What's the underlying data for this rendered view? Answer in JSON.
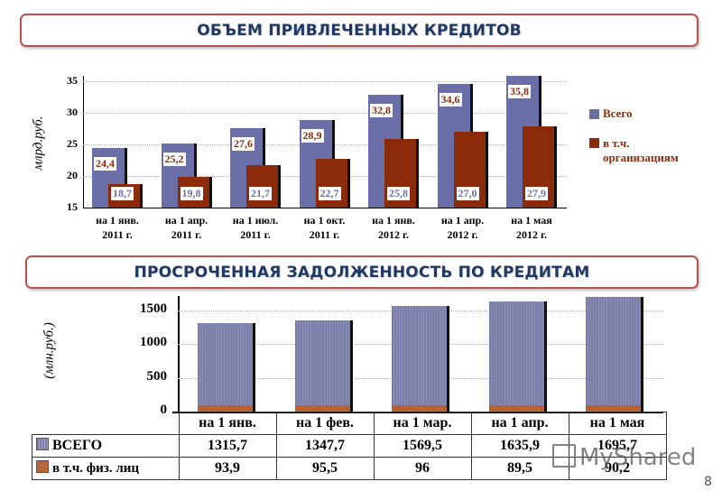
{
  "slide": {
    "page_number": "8",
    "watermark": "MyShared"
  },
  "section1": {
    "title": "ОБЪЕМ ПРИВЛЕЧЕННЫХ КРЕДИТОВ"
  },
  "section2": {
    "title": "ПРОСРОЧЕННАЯ ЗАДОЛЖЕННОСТЬ ПО КРЕДИТАМ"
  },
  "colors": {
    "total": "#6b6fa8",
    "org": "#8b2b0a",
    "banner_border": "#c0504d",
    "banner_text": "#1f3864"
  },
  "chart_data": [
    {
      "type": "bar",
      "title": "ОБЪЕМ ПРИВЛЕЧЕННЫХ КРЕДИТОВ",
      "ylabel": "млрд.руб.",
      "xlabel": "",
      "ylim": [
        15,
        35
      ],
      "yticks": [
        "35",
        "30",
        "25",
        "20",
        "15"
      ],
      "grid": true,
      "legend_position": "right",
      "categories": [
        "на 1 янв. 2011 г.",
        "на 1 апр. 2011 г.",
        "на 1 июл. 2011 г.",
        "на 1 окт. 2011 г.",
        "на 1 янв. 2012 г.",
        "на 1 апр. 2012 г.",
        "на 1 мая 2012 г."
      ],
      "category_lines": [
        [
          "на 1 янв.",
          "2011 г."
        ],
        [
          "на 1 апр.",
          "2011 г."
        ],
        [
          "на 1 июл.",
          "2011 г."
        ],
        [
          "на 1 окт.",
          "2011 г."
        ],
        [
          "на 1 янв.",
          "2012 г."
        ],
        [
          "на 1 апр.",
          "2012 г."
        ],
        [
          "на 1 мая",
          "2012 г."
        ]
      ],
      "series": [
        {
          "name": "Всего",
          "values": [
            24.4,
            25.2,
            27.6,
            28.9,
            32.8,
            34.6,
            35.8
          ],
          "labels": [
            "24,4",
            "25,2",
            "27,6",
            "28,9",
            "32,8",
            "34,6",
            "35,8"
          ]
        },
        {
          "name": "в т.ч. организациям",
          "values": [
            18.7,
            19.8,
            21.7,
            22.7,
            25.8,
            27.0,
            27.9
          ],
          "labels": [
            "18,7",
            "19,8",
            "21,7",
            "22,7",
            "25,8",
            "27,0",
            "27,9"
          ]
        }
      ],
      "legend": [
        "Всего",
        "в т.ч.",
        "организациям"
      ]
    },
    {
      "type": "bar",
      "title": "ПРОСРОЧЕННАЯ ЗАДОЛЖЕННОСТЬ ПО КРЕДИТАМ",
      "ylabel": "(млн.руб.)",
      "xlabel": "",
      "ylim": [
        0,
        1700
      ],
      "yticks": [
        "1500",
        "1000",
        "500",
        "0"
      ],
      "grid": true,
      "legend_position": "data-table",
      "categories": [
        "на 1 янв.",
        "на 1 фев.",
        "на 1 мар.",
        "на 1 апр.",
        "на 1 мая"
      ],
      "series": [
        {
          "name": "ВСЕГО",
          "values": [
            1315.7,
            1347.7,
            1569.5,
            1635.9,
            1695.7
          ],
          "labels": [
            "1315,7",
            "1347,7",
            "1569,5",
            "1635,9",
            "1695,7"
          ]
        },
        {
          "name": "в т.ч. физ. лиц",
          "values": [
            93.9,
            95.5,
            96,
            89.5,
            90.2
          ],
          "labels": [
            "93,9",
            "95,5",
            "96",
            "89,5",
            "90,2"
          ]
        }
      ]
    }
  ]
}
